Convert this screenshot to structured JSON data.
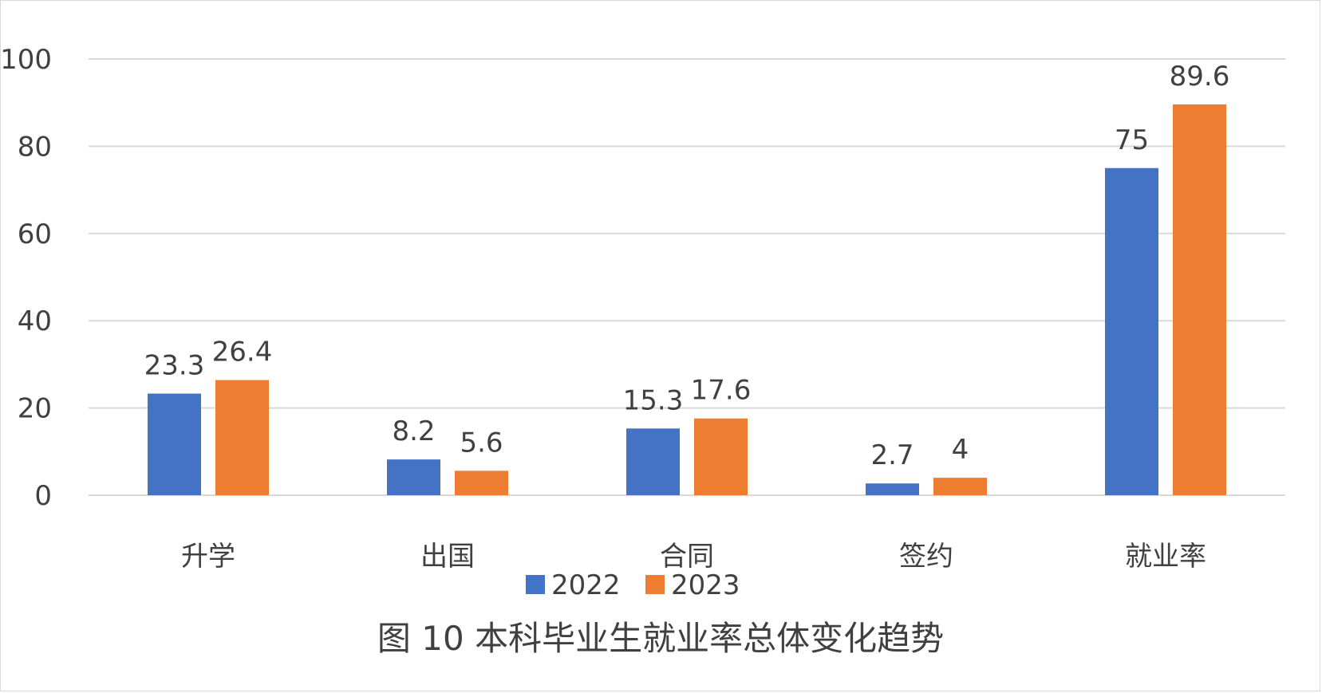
{
  "chart_data": {
    "type": "bar",
    "title": "图 10  本科毕业生就业率总体变化趋势",
    "categories": [
      "升学",
      "出国",
      "合同",
      "签约",
      "就业率"
    ],
    "series": [
      {
        "name": "2022",
        "color": "#4472C4",
        "values": [
          23.3,
          8.2,
          15.3,
          2.7,
          75
        ]
      },
      {
        "name": "2023",
        "color": "#ED7D31",
        "values": [
          26.4,
          5.6,
          17.6,
          4,
          89.6
        ]
      }
    ],
    "ylim": [
      0,
      100
    ],
    "yticks": [
      0,
      20,
      40,
      60,
      80,
      100
    ],
    "grid": true,
    "legend": "bottom",
    "data_labels": true
  }
}
